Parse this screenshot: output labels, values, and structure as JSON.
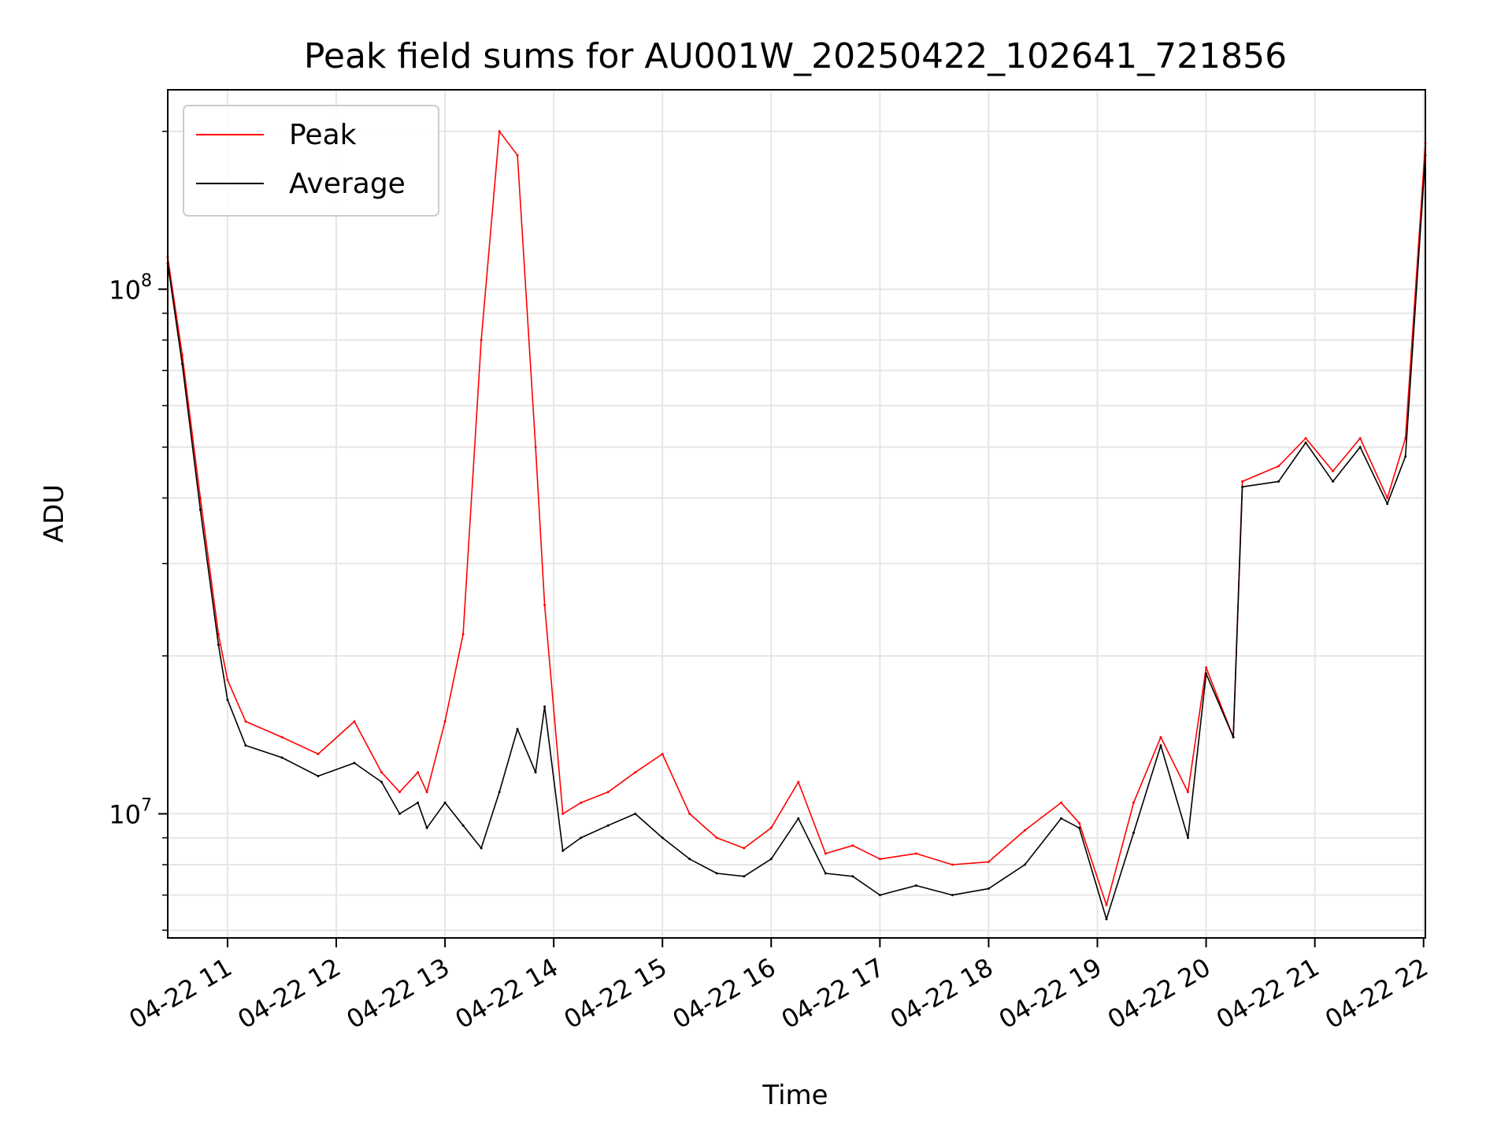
{
  "chart_data": {
    "type": "line",
    "title": "Peak field sums for AU001W_20250422_102641_721856",
    "xlabel": "Time",
    "ylabel": "ADU",
    "y_scale": "log",
    "ylim": [
      5800000,
      240000000
    ],
    "xlim": [
      "04-22 10:27",
      "04-22 22:01"
    ],
    "x_ticks": [
      "04-22 11",
      "04-22 12",
      "04-22 13",
      "04-22 14",
      "04-22 15",
      "04-22 16",
      "04-22 17",
      "04-22 18",
      "04-22 19",
      "04-22 20",
      "04-22 21",
      "04-22 22"
    ],
    "y_ticks": [
      {
        "value": 10000000,
        "base": "10",
        "exp": "7"
      },
      {
        "value": 100000000,
        "base": "10",
        "exp": "8"
      }
    ],
    "grid": true,
    "legend_position": "upper-left",
    "series": [
      {
        "name": "Peak",
        "color": "#ff0000",
        "x": [
          "04-22 10:27",
          "04-22 10:35",
          "04-22 10:45",
          "04-22 10:55",
          "04-22 11:00",
          "04-22 11:10",
          "04-22 11:30",
          "04-22 11:50",
          "04-22 12:10",
          "04-22 12:25",
          "04-22 12:35",
          "04-22 12:45",
          "04-22 12:50",
          "04-22 13:00",
          "04-22 13:10",
          "04-22 13:20",
          "04-22 13:30",
          "04-22 13:40",
          "04-22 13:50",
          "04-22 13:55",
          "04-22 14:05",
          "04-22 14:15",
          "04-22 14:30",
          "04-22 14:45",
          "04-22 15:00",
          "04-22 15:15",
          "04-22 15:30",
          "04-22 15:45",
          "04-22 16:00",
          "04-22 16:15",
          "04-22 16:30",
          "04-22 16:45",
          "04-22 17:00",
          "04-22 17:20",
          "04-22 17:40",
          "04-22 18:00",
          "04-22 18:20",
          "04-22 18:40",
          "04-22 18:50",
          "04-22 19:05",
          "04-22 19:20",
          "04-22 19:35",
          "04-22 19:50",
          "04-22 20:00",
          "04-22 20:15",
          "04-22 20:20",
          "04-22 20:40",
          "04-22 20:55",
          "04-22 21:10",
          "04-22 21:25",
          "04-22 21:40",
          "04-22 21:50",
          "04-22 22:01"
        ],
        "values": [
          115000000,
          75000000,
          40000000,
          22000000,
          18000000,
          15000000,
          14000000,
          13000000,
          15000000,
          12000000,
          11000000,
          12000000,
          11000000,
          15000000,
          22000000,
          80000000,
          200000000,
          180000000,
          50000000,
          25000000,
          10000000,
          10500000,
          11000000,
          12000000,
          13000000,
          10000000,
          9000000,
          8600000,
          9400000,
          11500000,
          8400000,
          8700000,
          8200000,
          8400000,
          8000000,
          8100000,
          9300000,
          10500000,
          9600000,
          6700000,
          10500000,
          14000000,
          11000000,
          19000000,
          14000000,
          43000000,
          46000000,
          52000000,
          45000000,
          52000000,
          40000000,
          52000000,
          190000000
        ]
      },
      {
        "name": "Average",
        "color": "#000000",
        "x": [
          "04-22 10:27",
          "04-22 10:35",
          "04-22 10:45",
          "04-22 10:55",
          "04-22 11:00",
          "04-22 11:10",
          "04-22 11:30",
          "04-22 11:50",
          "04-22 12:10",
          "04-22 12:25",
          "04-22 12:35",
          "04-22 12:45",
          "04-22 12:50",
          "04-22 13:00",
          "04-22 13:10",
          "04-22 13:20",
          "04-22 13:30",
          "04-22 13:40",
          "04-22 13:50",
          "04-22 13:55",
          "04-22 14:05",
          "04-22 14:15",
          "04-22 14:30",
          "04-22 14:45",
          "04-22 15:00",
          "04-22 15:15",
          "04-22 15:30",
          "04-22 15:45",
          "04-22 16:00",
          "04-22 16:15",
          "04-22 16:30",
          "04-22 16:45",
          "04-22 17:00",
          "04-22 17:20",
          "04-22 17:40",
          "04-22 18:00",
          "04-22 18:20",
          "04-22 18:40",
          "04-22 18:50",
          "04-22 19:05",
          "04-22 19:20",
          "04-22 19:35",
          "04-22 19:50",
          "04-22 20:00",
          "04-22 20:15",
          "04-22 20:20",
          "04-22 20:40",
          "04-22 20:55",
          "04-22 21:10",
          "04-22 21:25",
          "04-22 21:40",
          "04-22 21:50",
          "04-22 22:01"
        ],
        "values": [
          112000000,
          72000000,
          38000000,
          21000000,
          16500000,
          13500000,
          12800000,
          11800000,
          12500000,
          11500000,
          10000000,
          10500000,
          9400000,
          10500000,
          9500000,
          8600000,
          11000000,
          14500000,
          12000000,
          16000000,
          8500000,
          9000000,
          9500000,
          10000000,
          9000000,
          8200000,
          7700000,
          7600000,
          8200000,
          9800000,
          7700000,
          7600000,
          7000000,
          7300000,
          7000000,
          7200000,
          8000000,
          9800000,
          9400000,
          6300000,
          9200000,
          13500000,
          9000000,
          18500000,
          14000000,
          42000000,
          43000000,
          51000000,
          43000000,
          50000000,
          39000000,
          48000000,
          180000000
        ]
      }
    ]
  }
}
